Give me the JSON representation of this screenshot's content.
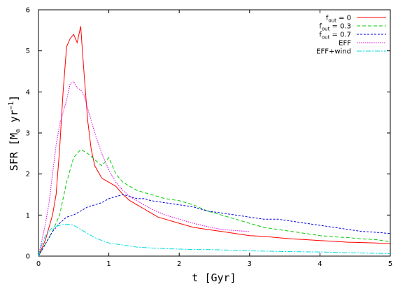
{
  "chart_data": {
    "type": "line",
    "xlabel": "t  [Gyr]",
    "ylabel_parts": [
      "SFR  [M",
      "⊙",
      " yr",
      "−1",
      "]"
    ],
    "xlim": [
      0,
      5
    ],
    "ylim": [
      0,
      6
    ],
    "x_ticks": [
      0,
      1,
      2,
      3,
      4,
      5
    ],
    "y_ticks": [
      0,
      1,
      2,
      3,
      4,
      5,
      6
    ],
    "x_tick_labels": [
      "0",
      "1",
      "2",
      "3",
      "4",
      "5"
    ],
    "y_tick_labels": [
      "0",
      "1",
      "2",
      "3",
      "4",
      "5",
      "6"
    ],
    "grid": false,
    "legend_position": "top-right",
    "series": [
      {
        "name": "f_out = 0",
        "label_main": "f",
        "label_sub": "out",
        "label_rest": " = 0",
        "color": "#ff0000",
        "dash": "none",
        "x": [
          0,
          0.05,
          0.1,
          0.15,
          0.2,
          0.25,
          0.3,
          0.35,
          0.4,
          0.45,
          0.5,
          0.55,
          0.6,
          0.62,
          0.65,
          0.7,
          0.75,
          0.8,
          0.9,
          1.0,
          1.1,
          1.2,
          1.3,
          1.4,
          1.5,
          1.6,
          1.7,
          1.8,
          1.9,
          2.0,
          2.2,
          2.4,
          2.6,
          2.8,
          3.0,
          3.2,
          3.4,
          3.6,
          3.8,
          4.0,
          4.2,
          4.4,
          4.6,
          4.8,
          5.0
        ],
        "y": [
          0,
          0.2,
          0.4,
          0.7,
          1.0,
          1.5,
          2.6,
          4.0,
          5.1,
          5.3,
          5.4,
          5.2,
          5.6,
          5.1,
          4.4,
          3.3,
          2.6,
          2.2,
          1.9,
          1.8,
          1.7,
          1.5,
          1.35,
          1.25,
          1.15,
          1.05,
          0.95,
          0.9,
          0.85,
          0.8,
          0.7,
          0.65,
          0.6,
          0.55,
          0.5,
          0.48,
          0.45,
          0.42,
          0.4,
          0.38,
          0.36,
          0.34,
          0.33,
          0.32,
          0.3
        ]
      },
      {
        "name": "f_out = 0.3",
        "label_main": "f",
        "label_sub": "out",
        "label_rest": " = 0.3",
        "color": "#00cc00",
        "dash": "5,3",
        "x": [
          0,
          0.1,
          0.2,
          0.3,
          0.4,
          0.5,
          0.6,
          0.7,
          0.8,
          0.9,
          1.0,
          1.1,
          1.2,
          1.3,
          1.4,
          1.5,
          1.6,
          1.7,
          1.8,
          2.0,
          2.2,
          2.4,
          2.6,
          2.8,
          3.0,
          3.2,
          3.4,
          3.6,
          3.8,
          4.0,
          4.2,
          4.4,
          4.6,
          4.8,
          5.0
        ],
        "y": [
          0,
          0.3,
          0.6,
          1.0,
          1.8,
          2.4,
          2.6,
          2.5,
          2.35,
          2.2,
          2.4,
          2.0,
          1.8,
          1.7,
          1.6,
          1.55,
          1.5,
          1.45,
          1.4,
          1.35,
          1.25,
          1.1,
          1.0,
          0.9,
          0.8,
          0.7,
          0.65,
          0.6,
          0.55,
          0.5,
          0.47,
          0.45,
          0.42,
          0.4,
          0.35
        ]
      },
      {
        "name": "f_out = 0.7",
        "label_main": "f",
        "label_sub": "out",
        "label_rest": " = 0.7",
        "color": "#0000dd",
        "dash": "3,2",
        "x": [
          0,
          0.1,
          0.2,
          0.3,
          0.4,
          0.5,
          0.6,
          0.7,
          0.8,
          0.9,
          1.0,
          1.1,
          1.2,
          1.3,
          1.4,
          1.5,
          1.6,
          1.8,
          2.0,
          2.2,
          2.4,
          2.6,
          2.8,
          3.0,
          3.2,
          3.4,
          3.6,
          3.8,
          4.0,
          4.2,
          4.4,
          4.6,
          4.8,
          5.0
        ],
        "y": [
          0,
          0.3,
          0.6,
          0.8,
          0.95,
          1.0,
          1.1,
          1.2,
          1.25,
          1.3,
          1.4,
          1.45,
          1.5,
          1.45,
          1.4,
          1.4,
          1.35,
          1.3,
          1.25,
          1.2,
          1.1,
          1.05,
          1.0,
          0.95,
          0.9,
          0.9,
          0.85,
          0.8,
          0.75,
          0.7,
          0.65,
          0.6,
          0.58,
          0.55
        ]
      },
      {
        "name": "EFF",
        "label_main": "EFF",
        "label_sub": "",
        "label_rest": "",
        "color": "#dd00dd",
        "dash": "1.5,1.5",
        "x": [
          0,
          0.05,
          0.1,
          0.15,
          0.2,
          0.25,
          0.3,
          0.35,
          0.4,
          0.45,
          0.5,
          0.55,
          0.6,
          0.65,
          0.7,
          0.8,
          0.9,
          1.0,
          1.1,
          1.2,
          1.3,
          1.4,
          1.5,
          1.6,
          1.8,
          2.0,
          2.2,
          2.4,
          2.6,
          2.8,
          3.0
        ],
        "y": [
          0,
          0.4,
          0.8,
          1.3,
          2.0,
          2.7,
          3.2,
          3.5,
          3.8,
          4.2,
          4.25,
          4.1,
          4.05,
          3.9,
          3.6,
          3.0,
          2.5,
          2.1,
          1.8,
          1.6,
          1.45,
          1.35,
          1.25,
          1.15,
          1.0,
          0.9,
          0.8,
          0.72,
          0.65,
          0.62,
          0.6
        ]
      },
      {
        "name": "EFF+wind",
        "label_main": "EFF+wind",
        "label_sub": "",
        "label_rest": "",
        "color": "#00dddd",
        "dash": "7,2,2,2",
        "x": [
          0,
          0.05,
          0.1,
          0.2,
          0.3,
          0.4,
          0.5,
          0.6,
          0.7,
          0.8,
          0.9,
          1.0,
          1.2,
          1.4,
          1.6,
          1.8,
          2.0,
          2.2,
          2.4,
          2.6,
          2.8,
          3.0,
          3.5,
          4.0,
          4.5,
          5.0
        ],
        "y": [
          0,
          0.3,
          0.5,
          0.7,
          0.75,
          0.78,
          0.75,
          0.65,
          0.55,
          0.45,
          0.38,
          0.32,
          0.27,
          0.22,
          0.2,
          0.18,
          0.17,
          0.16,
          0.16,
          0.15,
          0.14,
          0.13,
          0.11,
          0.1,
          0.08,
          0.06
        ]
      }
    ]
  }
}
